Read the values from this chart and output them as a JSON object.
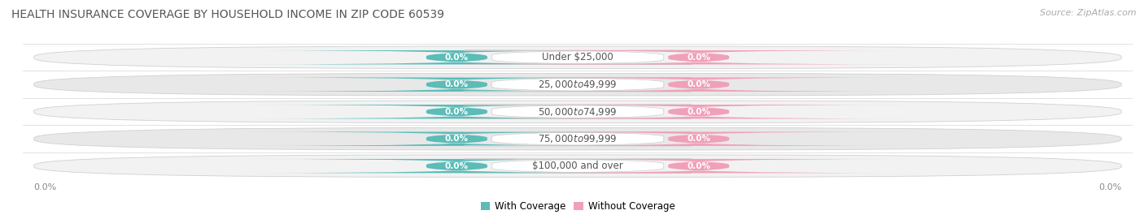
{
  "title": "HEALTH INSURANCE COVERAGE BY HOUSEHOLD INCOME IN ZIP CODE 60539",
  "source": "Source: ZipAtlas.com",
  "categories": [
    "Under $25,000",
    "$25,000 to $49,999",
    "$50,000 to $74,999",
    "$75,000 to $99,999",
    "$100,000 and over"
  ],
  "with_coverage": [
    0.0,
    0.0,
    0.0,
    0.0,
    0.0
  ],
  "without_coverage": [
    0.0,
    0.0,
    0.0,
    0.0,
    0.0
  ],
  "with_coverage_color": "#5bbcb8",
  "without_coverage_color": "#f0a0b8",
  "row_bg_even": "#f2f2f2",
  "row_bg_odd": "#e8e8e8",
  "row_border_color": "#d0d0d0",
  "category_label_color": "#555555",
  "title_color": "#555555",
  "source_color": "#aaaaaa",
  "legend_labels": [
    "With Coverage",
    "Without Coverage"
  ],
  "background_color": "#ffffff",
  "title_fontsize": 10,
  "source_fontsize": 8,
  "category_fontsize": 8.5,
  "value_fontsize": 7.5,
  "legend_fontsize": 8.5
}
